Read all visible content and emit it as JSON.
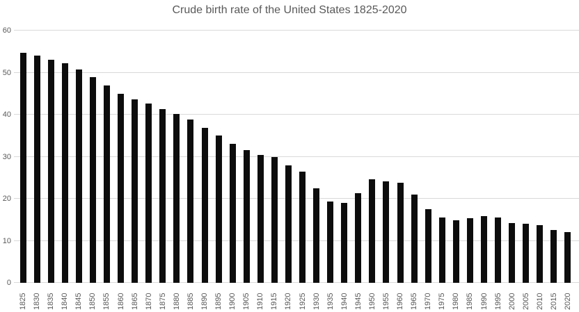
{
  "chart_data": {
    "type": "bar",
    "title": "Crude birth rate of the United States 1825-2020",
    "categories": [
      "1825",
      "1830",
      "1835",
      "1840",
      "1845",
      "1850",
      "1855",
      "1860",
      "1865",
      "1870",
      "1875",
      "1880",
      "1885",
      "1890",
      "1895",
      "1900",
      "1905",
      "1910",
      "1915",
      "1920",
      "1925",
      "1930",
      "1935",
      "1940",
      "1945",
      "1950",
      "1955",
      "1960",
      "1965",
      "1970",
      "1975",
      "1980",
      "1985",
      "1990",
      "1995",
      "2000",
      "2005",
      "2010",
      "2015",
      "2020"
    ],
    "values": [
      54.7,
      54.0,
      53.0,
      52.2,
      50.7,
      48.9,
      47.0,
      45.0,
      43.6,
      42.6,
      41.4,
      40.2,
      38.8,
      36.8,
      35.0,
      33.1,
      31.6,
      30.4,
      29.9,
      28.0,
      26.4,
      22.5,
      19.3,
      19.0,
      21.3,
      24.7,
      24.2,
      23.8,
      21.0,
      17.6,
      15.6,
      14.8,
      15.3,
      15.8,
      15.5,
      14.3,
      14.0,
      13.8,
      12.5,
      12.0
    ],
    "xlabel": "",
    "ylabel": "",
    "ylim": [
      0,
      60
    ],
    "yticks": [
      0,
      10,
      20,
      30,
      40,
      50,
      60
    ],
    "grid": true,
    "legend": "none",
    "colors": {
      "bar": "#0d0d0d",
      "gridline": "#d9d9d9",
      "text": "#595959",
      "background": "#ffffff"
    }
  }
}
